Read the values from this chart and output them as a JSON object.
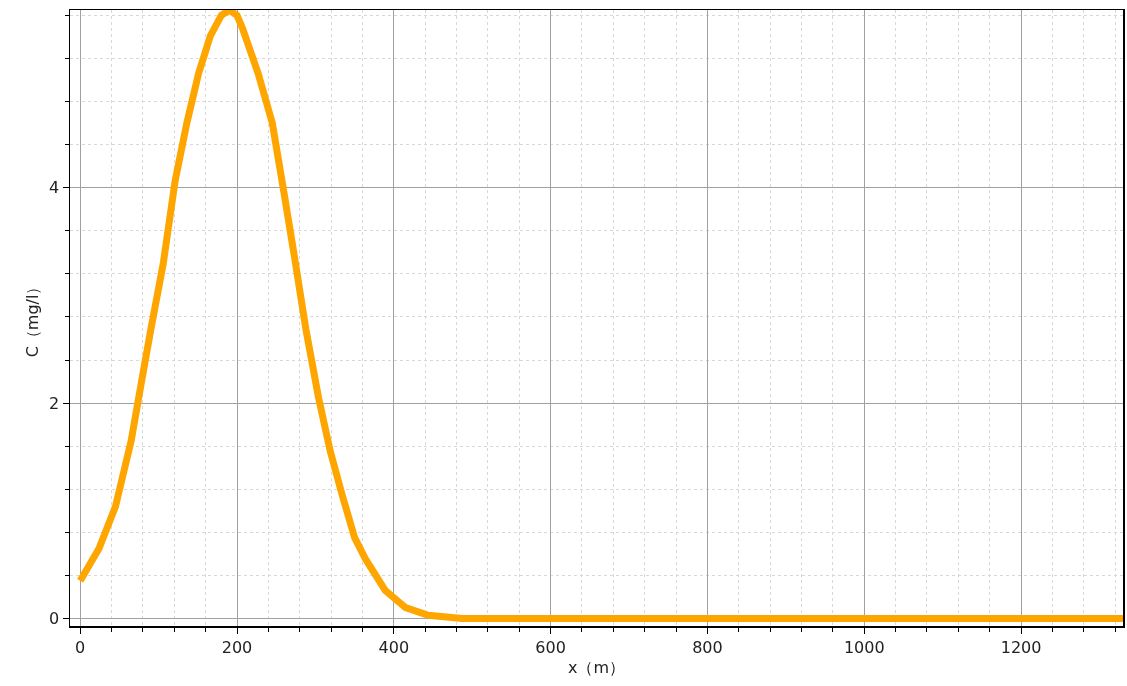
{
  "chart_data": {
    "type": "line",
    "xlabel": "x（m）",
    "ylabel": "C（mg/l）",
    "series": [
      {
        "color": "#ffa500",
        "x": [
          0,
          24,
          45,
          65,
          78,
          90,
          106,
          121,
          136,
          151,
          166,
          180,
          190,
          200,
          207,
          227,
          245,
          260,
          273,
          288,
          304,
          319,
          334,
          350,
          364,
          389,
          415,
          444,
          487,
          550,
          700,
          900,
          1100,
          1330
        ],
        "values": [
          0.35,
          0.65,
          1.04,
          1.65,
          2.19,
          2.68,
          3.3,
          4.06,
          4.6,
          5.06,
          5.41,
          5.6,
          5.65,
          5.6,
          5.48,
          5.06,
          4.6,
          3.95,
          3.37,
          2.68,
          2.05,
          1.55,
          1.15,
          0.75,
          0.55,
          0.26,
          0.1,
          0.03,
          0,
          0,
          0,
          0,
          0,
          0
        ]
      }
    ],
    "xlim": [
      -13,
      1330
    ],
    "ylim": [
      -0.07,
      5.65
    ],
    "xticks": [
      0,
      200,
      400,
      600,
      800,
      1000,
      1200
    ],
    "yticks": [
      0,
      2,
      4
    ],
    "grid": true,
    "legend": false,
    "marker": "none",
    "line_style": "solid"
  }
}
